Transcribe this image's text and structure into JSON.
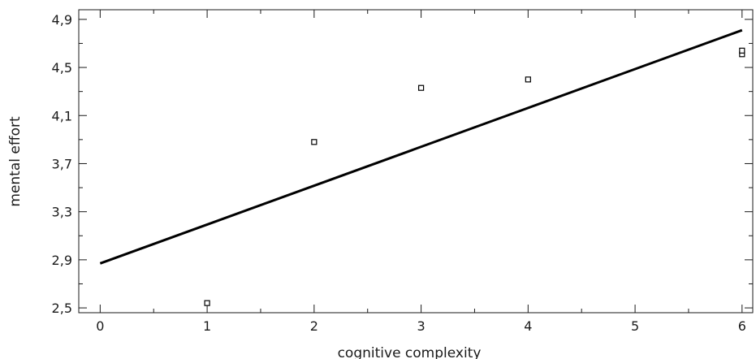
{
  "chart_data": {
    "type": "scatter",
    "title": "",
    "xlabel": "cognitive complexity",
    "ylabel": "mental effort",
    "xlim": [
      -0.2,
      6.1
    ],
    "ylim": [
      2.46,
      4.98
    ],
    "x_ticks": [
      0,
      1,
      2,
      3,
      4,
      5,
      6
    ],
    "x_tick_labels": [
      "0",
      "1",
      "2",
      "3",
      "4",
      "5",
      "6"
    ],
    "y_ticks": [
      2.5,
      2.9,
      3.3,
      3.7,
      4.1,
      4.5,
      4.9
    ],
    "y_tick_labels": [
      "2,5",
      "2,9",
      "3,3",
      "3,7",
      "4,1",
      "4,5",
      "4,9"
    ],
    "grid": false,
    "series": [
      {
        "type": "scatter",
        "marker": "open-square",
        "points": [
          {
            "x": 1,
            "y": 2.54
          },
          {
            "x": 2,
            "y": 3.88
          },
          {
            "x": 3,
            "y": 4.33
          },
          {
            "x": 4,
            "y": 4.4
          },
          {
            "x": 6,
            "y": 4.61
          },
          {
            "x": 6,
            "y": 4.64
          }
        ]
      },
      {
        "type": "line",
        "points": [
          {
            "x": 0,
            "y": 2.87
          },
          {
            "x": 6,
            "y": 4.81
          }
        ]
      }
    ],
    "colors": {
      "axis": "#1a1a1a",
      "line": "#000000",
      "marker": "#000000"
    }
  }
}
